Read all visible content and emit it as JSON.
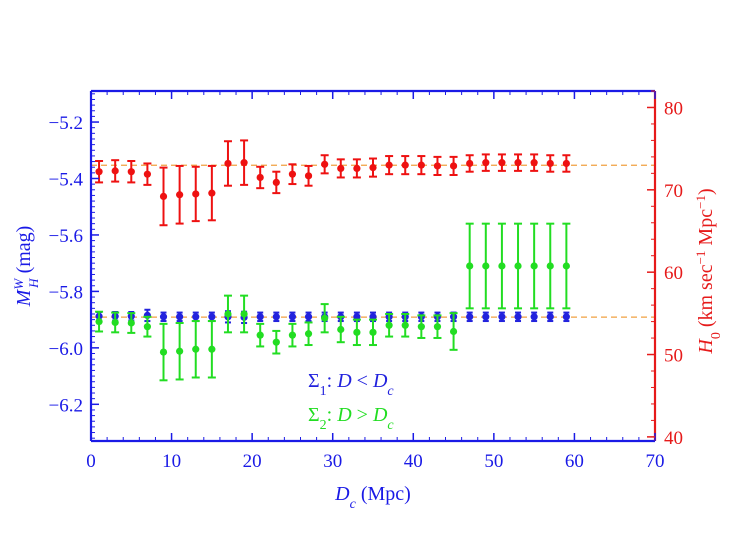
{
  "colors": {
    "left_axis": "#1a1ae6",
    "right_axis": "#e61a1a",
    "sigma1": "#2222dd",
    "sigma2": "#22dd22",
    "h0": "#ee1111",
    "reference_line": "#f0a040"
  },
  "chart_data": {
    "type": "scatter",
    "x": {
      "label_var": "D",
      "label_sub": "c",
      "label_unit": " (Mpc)",
      "range": [
        0,
        70
      ],
      "ticks": [
        "0",
        "10",
        "20",
        "30",
        "40",
        "50",
        "60",
        "70"
      ]
    },
    "y_left": {
      "label_var": "M",
      "label_sub": "H",
      "label_sup": "W",
      "label_unit": " (mag)",
      "range": [
        -6.33,
        -5.09
      ],
      "inverted": true,
      "ticks": [
        "-5.2",
        "-5.4",
        "-5.6",
        "-5.8",
        "-6.0",
        "-6.2"
      ],
      "reference_lines": [
        -5.353,
        -5.891
      ]
    },
    "y_right": {
      "label_var": "H",
      "label_sub": "0",
      "label_unit_prefix": " (km sec",
      "label_unit_exp1": "−1",
      "label_unit_mid": " Mpc",
      "label_unit_exp2": "−1",
      "label_unit_suffix": ")",
      "range": [
        39.5,
        82
      ],
      "ticks": [
        "40",
        "50",
        "60",
        "70",
        "80"
      ]
    },
    "series": [
      {
        "name": "Σ1",
        "axis": "left",
        "x": [
          1,
          3,
          5,
          7,
          9,
          11,
          13,
          15,
          17,
          19,
          21,
          23,
          25,
          27,
          29,
          31,
          33,
          35,
          37,
          39,
          41,
          43,
          45,
          47,
          49,
          51,
          53,
          55,
          57,
          59
        ],
        "y": [
          -5.888,
          -5.888,
          -5.888,
          -5.885,
          -5.89,
          -5.89,
          -5.89,
          -5.89,
          -5.89,
          -5.892,
          -5.89,
          -5.89,
          -5.89,
          -5.89,
          -5.89,
          -5.89,
          -5.89,
          -5.89,
          -5.89,
          -5.89,
          -5.89,
          -5.89,
          -5.89,
          -5.89,
          -5.89,
          -5.89,
          -5.89,
          -5.89,
          -5.89,
          -5.89
        ],
        "err": [
          0.015,
          0.015,
          0.015,
          0.02,
          0.015,
          0.015,
          0.015,
          0.015,
          0.02,
          0.02,
          0.015,
          0.015,
          0.015,
          0.015,
          0.015,
          0.015,
          0.015,
          0.015,
          0.015,
          0.015,
          0.015,
          0.015,
          0.015,
          0.015,
          0.015,
          0.015,
          0.015,
          0.015,
          0.015,
          0.015
        ]
      },
      {
        "name": "Σ2",
        "axis": "left",
        "x": [
          1,
          3,
          5,
          7,
          9,
          11,
          13,
          15,
          17,
          19,
          21,
          23,
          25,
          27,
          29,
          31,
          33,
          35,
          37,
          39,
          41,
          43,
          45,
          47,
          49,
          51,
          53,
          55,
          57,
          59
        ],
        "y": [
          -5.907,
          -5.91,
          -5.912,
          -5.925,
          -6.015,
          -6.012,
          -6.005,
          -6.005,
          -5.88,
          -5.88,
          -5.955,
          -5.98,
          -5.955,
          -5.95,
          -5.895,
          -5.935,
          -5.945,
          -5.945,
          -5.92,
          -5.92,
          -5.925,
          -5.925,
          -5.942,
          -5.71,
          -5.71,
          -5.71,
          -5.71,
          -5.71,
          -5.71,
          -5.71
        ],
        "err": [
          0.035,
          0.035,
          0.035,
          0.035,
          0.1,
          0.1,
          0.1,
          0.1,
          0.065,
          0.065,
          0.04,
          0.04,
          0.04,
          0.04,
          0.05,
          0.045,
          0.045,
          0.045,
          0.04,
          0.04,
          0.04,
          0.04,
          0.065,
          0.15,
          0.15,
          0.15,
          0.15,
          0.15,
          0.15,
          0.15
        ]
      },
      {
        "name": "H0",
        "axis": "right",
        "x": [
          1,
          3,
          5,
          7,
          9,
          11,
          13,
          15,
          17,
          19,
          21,
          23,
          25,
          27,
          29,
          31,
          33,
          35,
          37,
          39,
          41,
          43,
          45,
          47,
          49,
          51,
          53,
          55,
          57,
          59
        ],
        "y": [
          72.2,
          72.3,
          72.2,
          71.9,
          69.2,
          69.4,
          69.5,
          69.6,
          73.2,
          73.3,
          71.5,
          70.9,
          71.9,
          71.7,
          73.1,
          72.6,
          72.6,
          72.7,
          73.0,
          73.0,
          73.0,
          72.9,
          72.9,
          73.2,
          73.3,
          73.3,
          73.3,
          73.3,
          73.2,
          73.2
        ],
        "err": [
          1.3,
          1.3,
          1.3,
          1.3,
          3.5,
          3.5,
          3.3,
          3.3,
          2.7,
          2.7,
          1.3,
          1.3,
          1.2,
          1.2,
          1.1,
          1.1,
          1.1,
          1.1,
          1.1,
          1.1,
          1.1,
          1.1,
          1.1,
          1.0,
          1.0,
          1.0,
          1.0,
          1.0,
          1.0,
          1.0
        ]
      }
    ],
    "legend": [
      {
        "series": "Σ1",
        "symbol": "Σ",
        "sub": "1",
        "text_mid": ": ",
        "var1": "D",
        "rel": " < ",
        "var2": "D",
        "var2_sub": "c"
      },
      {
        "series": "Σ2",
        "symbol": "Σ",
        "sub": "2",
        "text_mid": ": ",
        "var1": "D",
        "rel": " > ",
        "var2": "D",
        "var2_sub": "c"
      }
    ],
    "grid": false
  }
}
